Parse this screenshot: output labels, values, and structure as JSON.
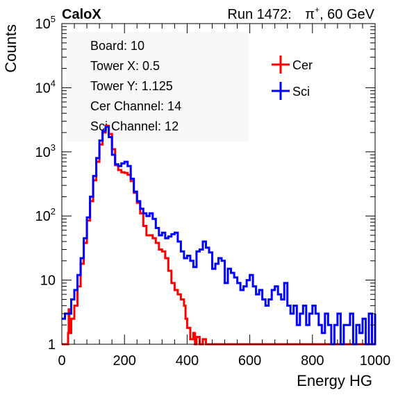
{
  "header": {
    "experiment": "CaloX",
    "run_prefix": "Run 1472:",
    "particle_base": "π",
    "particle_charge": "+",
    "energy_suffix": ", 60 GeV"
  },
  "info_box": [
    "Board: 10",
    "Tower X: 0.5",
    "Tower Y: 1.125",
    "Cer Channel: 14",
    "Sci Channel: 12"
  ],
  "chart_data": {
    "type": "line",
    "title": "",
    "xlabel": "Energy HG",
    "ylabel": "Counts",
    "xlim": [
      0,
      1000
    ],
    "ylim": [
      1,
      100000
    ],
    "yscale": "log",
    "grid": false,
    "legend_position": "top-right",
    "x_ticks": [
      {
        "value": 0,
        "label": "0"
      },
      {
        "value": 200,
        "label": "200"
      },
      {
        "value": 400,
        "label": "400"
      },
      {
        "value": 600,
        "label": "600"
      },
      {
        "value": 800,
        "label": "800"
      },
      {
        "value": 1000,
        "label": "1000"
      }
    ],
    "y_ticks": [
      {
        "value": 1,
        "base": "1",
        "exp": ""
      },
      {
        "value": 10,
        "base": "10",
        "exp": ""
      },
      {
        "value": 100,
        "base": "10",
        "exp": "2"
      },
      {
        "value": 1000,
        "base": "10",
        "exp": "3"
      },
      {
        "value": 10000,
        "base": "10",
        "exp": "4"
      },
      {
        "value": 100000,
        "base": "10",
        "exp": "5"
      }
    ],
    "series": [
      {
        "name": "Cer",
        "color": "#ff0000",
        "x": [
          0,
          10,
          20,
          22,
          24,
          30,
          40,
          50,
          60,
          70,
          80,
          90,
          100,
          110,
          120,
          130,
          140,
          150,
          160,
          170,
          180,
          190,
          200,
          210,
          220,
          230,
          240,
          250,
          260,
          270,
          280,
          290,
          300,
          310,
          320,
          330,
          340,
          350,
          360,
          370,
          380,
          390,
          395,
          400,
          410,
          420,
          425,
          430,
          440,
          450,
          460,
          470,
          480,
          490,
          500,
          520,
          540,
          560,
          580,
          600,
          620,
          640,
          660,
          680,
          700,
          720,
          740,
          760,
          780,
          800,
          820,
          840,
          860,
          880,
          900,
          920,
          940,
          960,
          980,
          1000
        ],
        "values": [
          1,
          1,
          1.5,
          3.5,
          1.5,
          2.5,
          4,
          8,
          18,
          38,
          85,
          170,
          360,
          700,
          1300,
          2000,
          2550,
          1900,
          1100,
          620,
          520,
          480,
          470,
          440,
          350,
          230,
          160,
          110,
          70,
          50,
          50,
          45,
          38,
          30,
          28,
          22,
          14,
          9,
          7,
          6,
          5,
          4,
          2.5,
          1.8,
          1.2,
          1.5,
          1,
          1.3,
          1,
          1.2,
          1,
          1,
          1,
          1,
          1,
          1,
          1,
          1,
          1,
          1,
          1,
          1,
          1,
          1,
          1,
          1,
          1,
          1,
          1,
          1,
          1,
          1,
          1,
          1,
          1,
          1,
          1,
          1,
          1,
          1
        ]
      },
      {
        "name": "Sci",
        "color": "#0000ff",
        "x": [
          0,
          10,
          20,
          30,
          40,
          50,
          60,
          70,
          80,
          90,
          100,
          110,
          120,
          130,
          140,
          150,
          160,
          170,
          180,
          190,
          200,
          210,
          220,
          230,
          240,
          250,
          260,
          270,
          280,
          290,
          300,
          310,
          320,
          330,
          340,
          350,
          360,
          370,
          380,
          390,
          400,
          410,
          420,
          430,
          440,
          450,
          460,
          470,
          480,
          490,
          500,
          510,
          520,
          530,
          540,
          550,
          560,
          570,
          580,
          590,
          600,
          610,
          620,
          630,
          640,
          650,
          660,
          670,
          680,
          690,
          700,
          710,
          720,
          730,
          740,
          750,
          760,
          770,
          780,
          790,
          800,
          810,
          820,
          830,
          840,
          850,
          860,
          870,
          880,
          890,
          900,
          910,
          920,
          930,
          940,
          950,
          960,
          970,
          980,
          990,
          1000
        ],
        "values": [
          2.5,
          3,
          3,
          5,
          7,
          12,
          22,
          45,
          95,
          200,
          420,
          800,
          1500,
          2100,
          2450,
          1700,
          900,
          640,
          600,
          660,
          700,
          600,
          380,
          240,
          170,
          130,
          110,
          100,
          110,
          90,
          65,
          50,
          55,
          45,
          48,
          52,
          55,
          40,
          28,
          22,
          24,
          20,
          16,
          28,
          30,
          40,
          32,
          27,
          15,
          18,
          22,
          20,
          9,
          15,
          13,
          11,
          9,
          7,
          8,
          10,
          12,
          8,
          6,
          7,
          5,
          4,
          5,
          7,
          8,
          6,
          5,
          9,
          4,
          3,
          4,
          2,
          3,
          4,
          2,
          3,
          4,
          3,
          2,
          1.5,
          3,
          2,
          1,
          2,
          3,
          1,
          2,
          2,
          3,
          1,
          2,
          1.5,
          2.5,
          1,
          3,
          1,
          3
        ]
      }
    ]
  }
}
